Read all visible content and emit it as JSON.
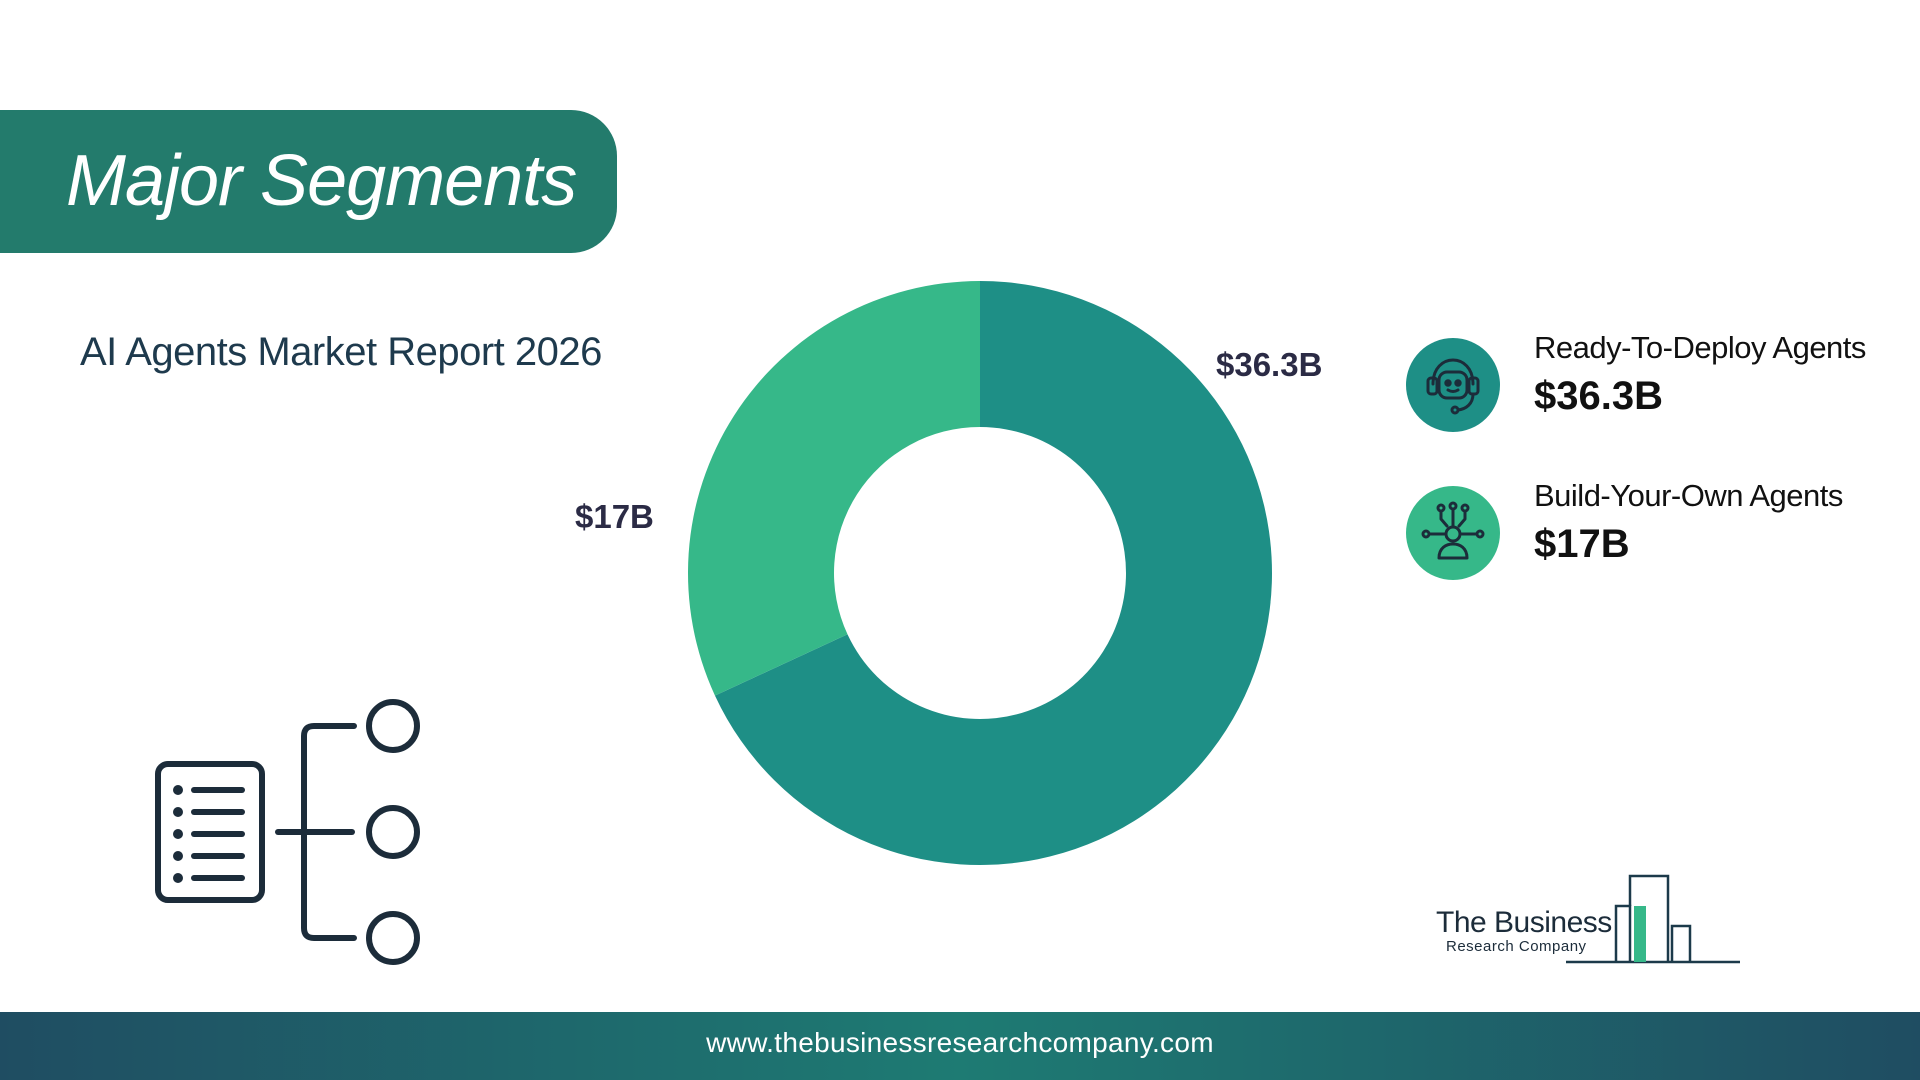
{
  "header": {
    "title": "Major Segments",
    "subtitle": "AI Agents Market Report 2026"
  },
  "colors": {
    "banner": "#237b6c",
    "series_dark": "#1e8f86",
    "series_light": "#36b889",
    "text_dark": "#1e3a4d",
    "footer_start": "#1f4d62",
    "footer_mid": "#1e7b73"
  },
  "chart_data": {
    "type": "pie",
    "variant": "donut",
    "title": "",
    "categories": [
      "Ready-To-Deploy Agents",
      "Build-Your-Own Agents"
    ],
    "values": [
      36.3,
      17
    ],
    "unit": "B USD",
    "value_labels": [
      "$36.3B",
      "$17B"
    ],
    "colors": [
      "#1e8f86",
      "#36b889"
    ],
    "legend_placement": "right"
  },
  "legend": {
    "items": [
      {
        "name": "Ready-To-Deploy Agents",
        "value": "$36.3B",
        "icon": "support-agent-icon",
        "color": "#1e8f86"
      },
      {
        "name": "Build-Your-Own Agents",
        "value": "$17B",
        "icon": "network-person-icon",
        "color": "#36b889"
      }
    ]
  },
  "decorations": {
    "segments_icon": "segments-tree-icon"
  },
  "brand": {
    "name": "The Business",
    "sub": "Research Company"
  },
  "footer": {
    "url": "www.thebusinessresearchcompany.com"
  }
}
